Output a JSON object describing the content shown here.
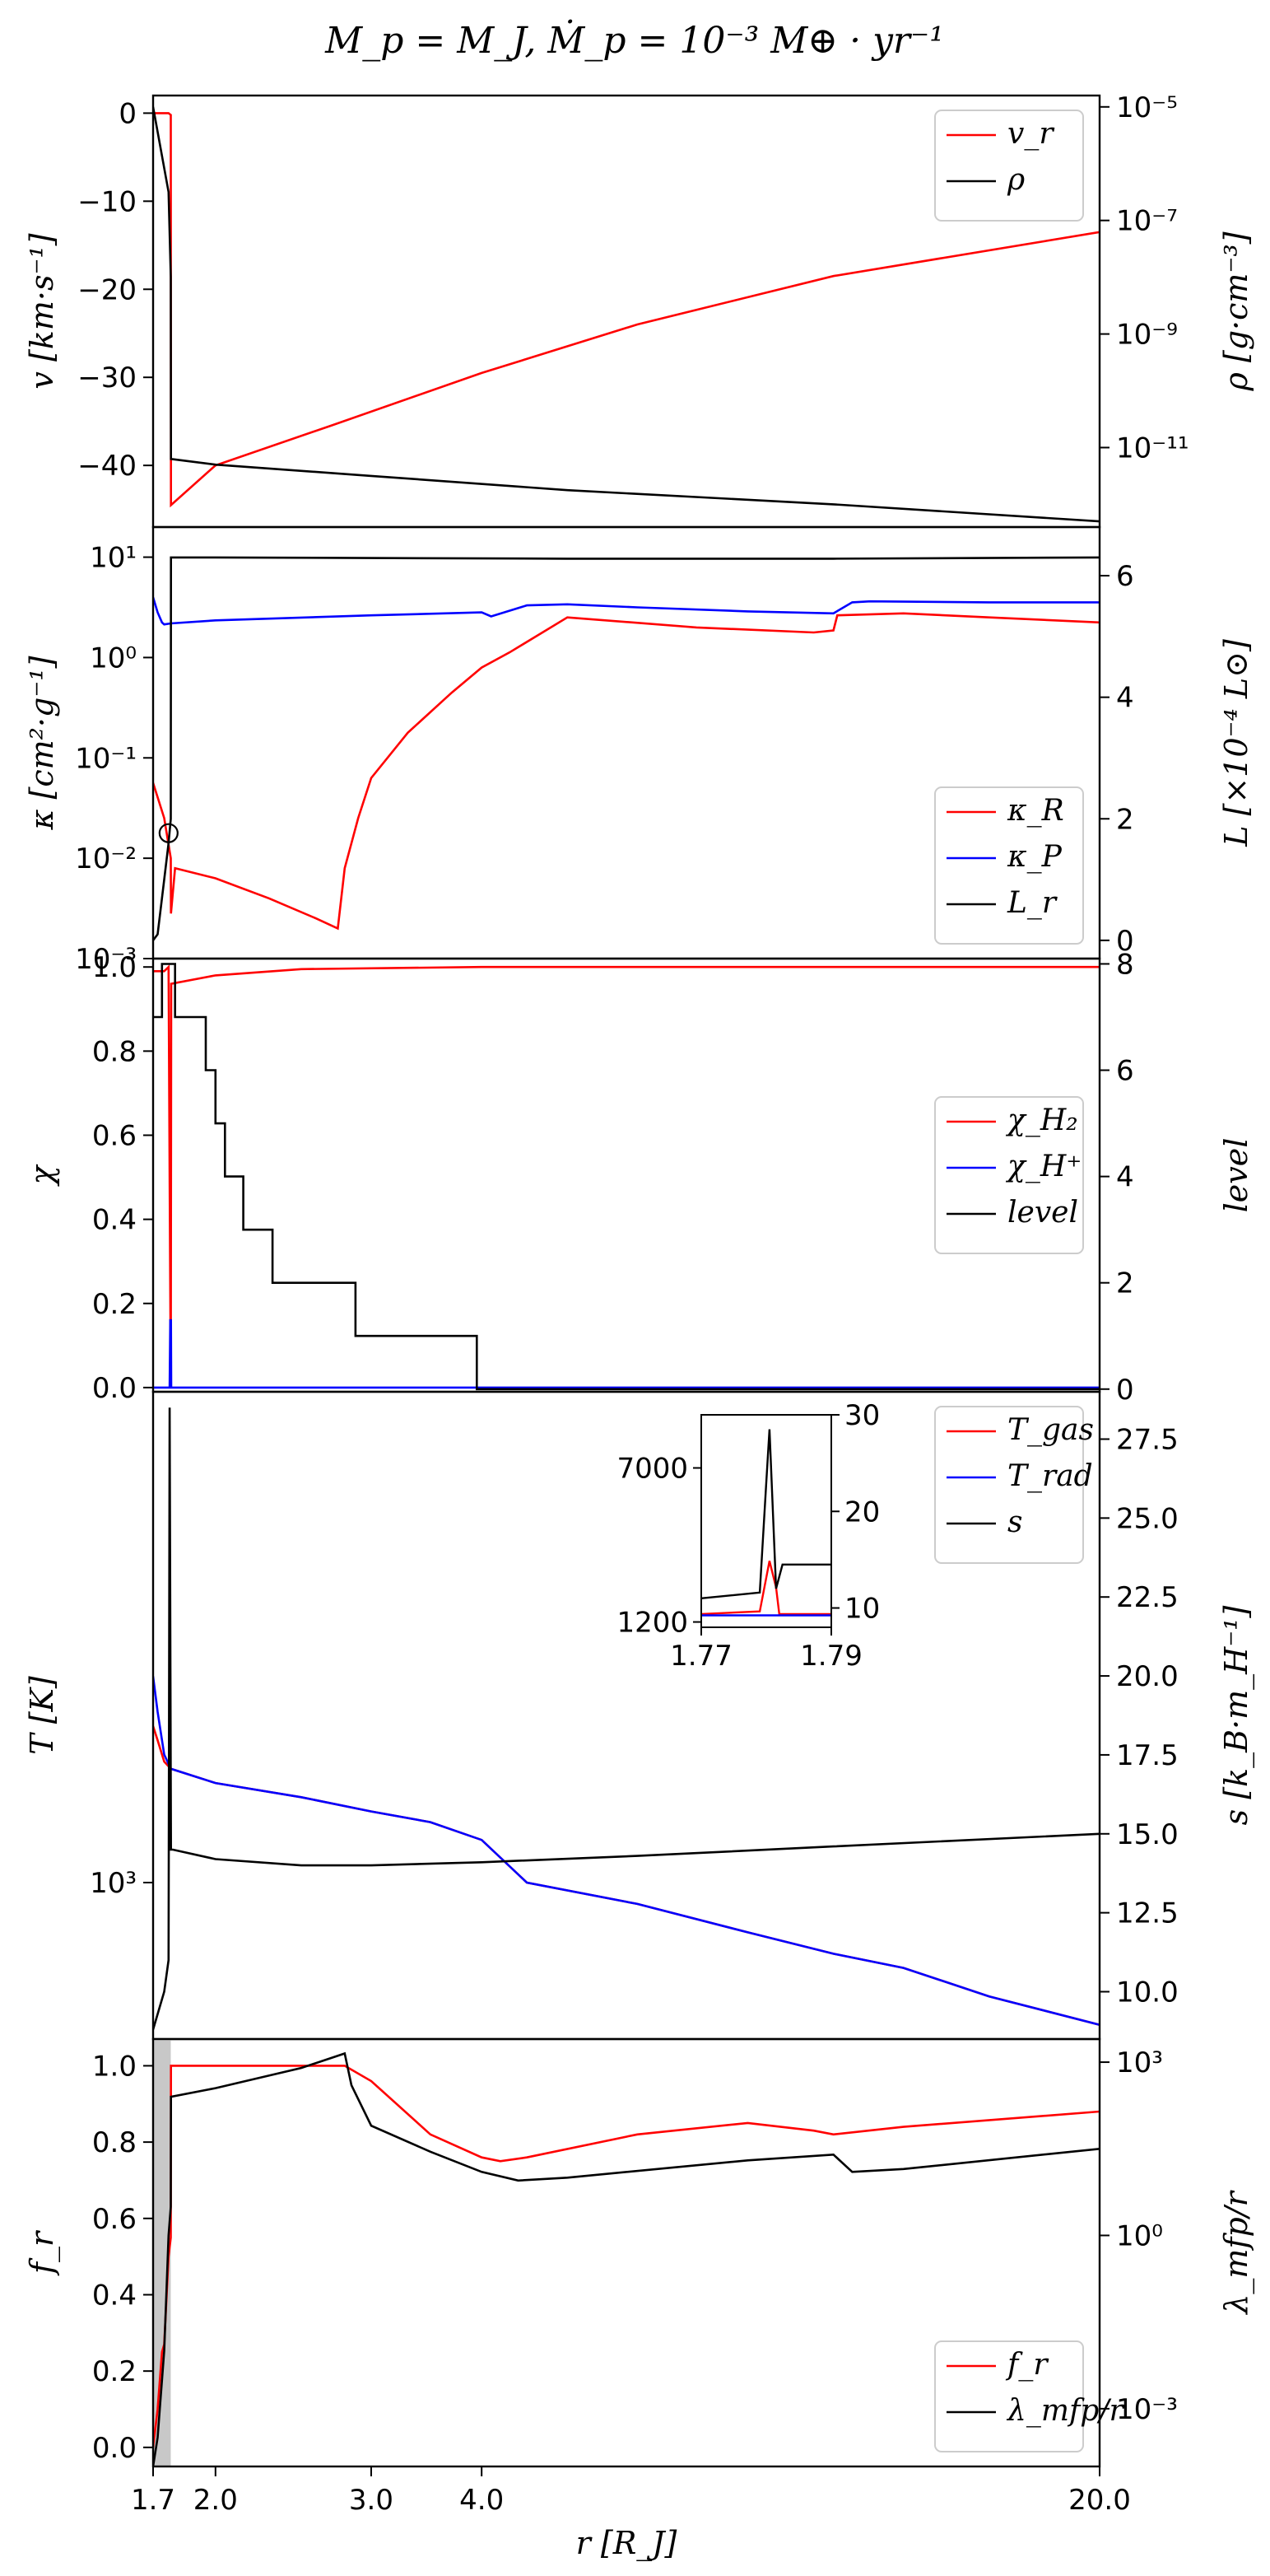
{
  "figure_title": "M_p = M_J, Ṁ_p = 10⁻³ M⊕ · yr⁻¹",
  "colors": {
    "red": "#ff0000",
    "blue": "#0000ff",
    "black": "#000000",
    "shade": "#c8c8c8"
  },
  "chart_data": [
    {
      "type": "line",
      "panel": "velocity-density",
      "xscale": "log",
      "xlim": [
        1.7,
        20.0
      ],
      "ylabel": "v [km·s⁻¹]",
      "ylim": [
        -47,
        2
      ],
      "y_ticks": [
        "0",
        "−10",
        "−20",
        "−30",
        "−40"
      ],
      "y2label": "ρ [g·cm⁻³]",
      "y2scale": "log",
      "y2lim_log10": [
        -12.4,
        -4.8
      ],
      "y2_ticks": [
        "10⁻⁵",
        "10⁻⁷",
        "10⁻⁹",
        "10⁻¹¹"
      ],
      "legend": {
        "position": "top-right",
        "entries": [
          "v_r",
          "ρ"
        ]
      },
      "series": [
        {
          "name": "v_r",
          "axis": "left",
          "color": "red",
          "x": [
            1.7,
            1.77,
            1.775,
            1.78,
            1.781,
            2.0,
            2.7,
            4.0,
            6.0,
            10.0,
            20.0
          ],
          "y": [
            0,
            0,
            -0.1,
            -0.2,
            -44.5,
            -40,
            -35.5,
            -29.5,
            -24,
            -18.5,
            -13.5
          ]
        },
        {
          "name": "ρ",
          "axis": "right",
          "color": "black",
          "x": [
            1.7,
            1.77,
            1.78,
            1.781,
            2.0,
            3.0,
            5.0,
            10.0,
            20.0
          ],
          "y_log10": [
            -5,
            -6.5,
            -8,
            -11.2,
            -11.3,
            -11.5,
            -11.75,
            -12.0,
            -12.3
          ]
        }
      ]
    },
    {
      "type": "line",
      "panel": "opacity-luminosity",
      "xscale": "log",
      "xlim": [
        1.7,
        20.0
      ],
      "ylabel": "κ [cm²·g⁻¹]",
      "yscale": "log",
      "ylim_log10": [
        -3,
        1.3
      ],
      "y_ticks": [
        "10¹",
        "10⁰",
        "10⁻¹",
        "10⁻²",
        "10⁻³"
      ],
      "y2label": "L [×10⁻⁴ L⊙]",
      "y2lim": [
        -0.3,
        6.8
      ],
      "y2_ticks": [
        "0",
        "2",
        "4",
        "6"
      ],
      "legend": {
        "position": "lower-right",
        "entries": [
          "κ_R",
          "κ_P",
          "L_r"
        ]
      },
      "series": [
        {
          "name": "κ_R",
          "axis": "left",
          "color": "red",
          "x": [
            1.7,
            1.75,
            1.78,
            1.781,
            1.8,
            2.0,
            2.3,
            2.6,
            2.75,
            2.8,
            2.9,
            3.0,
            3.3,
            3.7,
            4.0,
            4.3,
            5.0,
            7.0,
            9.5,
            10.0,
            10.1,
            12.0,
            15.0,
            20.0
          ],
          "y_log10": [
            -1.25,
            -1.6,
            -2.0,
            -2.55,
            -2.1,
            -2.2,
            -2.4,
            -2.6,
            -2.7,
            -2.1,
            -1.6,
            -1.2,
            -0.75,
            -0.35,
            -0.1,
            0.05,
            0.4,
            0.3,
            0.25,
            0.27,
            0.42,
            0.44,
            0.4,
            0.35
          ]
        },
        {
          "name": "κ_P",
          "axis": "left",
          "color": "blue",
          "x": [
            1.7,
            1.72,
            1.74,
            1.75,
            1.78,
            2.0,
            3.0,
            4.0,
            4.1,
            4.5,
            5.0,
            6.0,
            8.0,
            10.0,
            10.5,
            11.0,
            15.0,
            20.0
          ],
          "y_log10": [
            0.6,
            0.45,
            0.35,
            0.33,
            0.34,
            0.37,
            0.42,
            0.45,
            0.41,
            0.52,
            0.53,
            0.5,
            0.46,
            0.44,
            0.55,
            0.56,
            0.55,
            0.55
          ]
        },
        {
          "name": "L_r",
          "axis": "right",
          "color": "black",
          "x": [
            1.7,
            1.72,
            1.75,
            1.77,
            1.78,
            1.781,
            2.0,
            5.0,
            10.0,
            20.0
          ],
          "y": [
            0,
            0.1,
            1.0,
            1.6,
            2.0,
            6.3,
            6.3,
            6.28,
            6.28,
            6.3
          ]
        }
      ],
      "annotation": {
        "type": "circle-marker",
        "x": 1.77,
        "y_log10": -1.75
      }
    },
    {
      "type": "line",
      "panel": "dissociation-level",
      "xscale": "log",
      "xlim": [
        1.7,
        20.0
      ],
      "ylabel": "χ",
      "ylim": [
        -0.01,
        1.02
      ],
      "y_ticks": [
        "1.0",
        "0.8",
        "0.6",
        "0.4",
        "0.2",
        "0.0"
      ],
      "y2label": "level",
      "y2lim": [
        -0.05,
        8.1
      ],
      "y2_ticks": [
        "8",
        "6",
        "4",
        "2",
        "0"
      ],
      "legend": {
        "position": "center-right",
        "entries": [
          "χ_H₂",
          "χ_H⁺",
          "level"
        ]
      },
      "series": [
        {
          "name": "χ_H₂",
          "axis": "left",
          "color": "red",
          "x": [
            1.7,
            1.75,
            1.77,
            1.775,
            1.78,
            1.782,
            2.0,
            2.5,
            4.0,
            20.0
          ],
          "y": [
            0.99,
            0.99,
            1.0,
            0.5,
            0.0,
            0.96,
            0.98,
            0.995,
            1.0,
            1.0
          ]
        },
        {
          "name": "χ_H⁺",
          "axis": "left",
          "color": "blue",
          "x": [
            1.7,
            1.775,
            1.778,
            1.781,
            1.782,
            20.0
          ],
          "y": [
            0.0,
            0.0,
            0.16,
            0.16,
            0.0,
            0.0
          ]
        },
        {
          "name": "level",
          "axis": "right",
          "color": "black",
          "x": [
            1.7,
            1.74,
            1.74,
            1.8,
            1.8,
            1.95,
            1.95,
            2.0,
            2.0,
            2.05,
            2.05,
            2.15,
            2.15,
            2.32,
            2.32,
            2.88,
            2.88,
            3.95,
            3.95,
            20.0
          ],
          "y": [
            7,
            7,
            8,
            8,
            7,
            7,
            6,
            6,
            5,
            5,
            4,
            4,
            3,
            3,
            2,
            2,
            1,
            1,
            0,
            0
          ]
        }
      ]
    },
    {
      "type": "line",
      "panel": "temperature-entropy",
      "xscale": "log",
      "xlim": [
        1.7,
        20.0
      ],
      "ylabel": "T [K]",
      "yscale": "log",
      "ylim_log10": [
        2.78,
        3.69
      ],
      "y_ticks": [
        "10³"
      ],
      "y2label": "s [k_B·m_H⁻¹]",
      "y2lim": [
        8.5,
        29.0
      ],
      "y2_ticks": [
        "27.5",
        "25.0",
        "22.5",
        "20.0",
        "17.5",
        "15.0",
        "12.5",
        "10.0"
      ],
      "legend": {
        "position": "top-right",
        "entries": [
          "T_gas",
          "T_rad",
          "s"
        ]
      },
      "series": [
        {
          "name": "T_gas",
          "axis": "left",
          "color": "red",
          "x": [
            1.7,
            1.72,
            1.75,
            1.78,
            2.0,
            2.5,
            3.0,
            3.5,
            4.0,
            4.5,
            6.0,
            8.0,
            10.0,
            12.0,
            15.0,
            20.0
          ],
          "y_log10": [
            3.22,
            3.2,
            3.17,
            3.16,
            3.14,
            3.12,
            3.1,
            3.085,
            3.06,
            3.0,
            2.97,
            2.93,
            2.9,
            2.88,
            2.84,
            2.8
          ]
        },
        {
          "name": "T_rad",
          "axis": "left",
          "color": "blue",
          "x": [
            1.7,
            1.72,
            1.75,
            1.78,
            2.0,
            2.5,
            3.0,
            3.5,
            4.0,
            4.5,
            6.0,
            8.0,
            10.0,
            12.0,
            15.0,
            20.0
          ],
          "y_log10": [
            3.29,
            3.24,
            3.18,
            3.16,
            3.14,
            3.12,
            3.1,
            3.085,
            3.06,
            3.0,
            2.97,
            2.93,
            2.9,
            2.88,
            2.84,
            2.8
          ]
        },
        {
          "name": "s",
          "axis": "right",
          "color": "black",
          "x": [
            1.7,
            1.75,
            1.77,
            1.775,
            1.781,
            1.79,
            2.0,
            2.5,
            3.0,
            4.0,
            6.0,
            10.0,
            20.0
          ],
          "y": [
            8.8,
            10.0,
            11.0,
            28.5,
            14.5,
            14.5,
            14.2,
            14.0,
            14.0,
            14.1,
            14.3,
            14.6,
            15.0
          ]
        }
      ],
      "inset": {
        "xlim": [
          1.77,
          1.79
        ],
        "x_ticks": [
          "1.77",
          "1.79"
        ],
        "y_ticks": [
          "7000",
          "1200"
        ],
        "y2_ticks": [
          "30",
          "20",
          "10"
        ],
        "y_range": [
          1000,
          9000
        ],
        "y2_range": [
          8,
          30
        ],
        "series": [
          {
            "name": "T_gas",
            "axis": "left",
            "color": "red",
            "x": [
              1.77,
              1.779,
              1.7805,
              1.7815,
              1.782,
              1.79
            ],
            "y": [
              1500,
              1600,
              3500,
              2500,
              1500,
              1500
            ]
          },
          {
            "name": "T_rad",
            "axis": "left",
            "color": "blue",
            "x": [
              1.77,
              1.79
            ],
            "y": [
              1450,
              1450
            ]
          },
          {
            "name": "s",
            "axis": "right",
            "color": "black",
            "x": [
              1.77,
              1.779,
              1.78,
              1.7805,
              1.7815,
              1.7825,
              1.79
            ],
            "y": [
              11.0,
              11.6,
              23.0,
              28.5,
              12.0,
              14.5,
              14.5
            ]
          }
        ]
      }
    },
    {
      "type": "line",
      "panel": "flux-limiter-mfp",
      "xscale": "log",
      "xlim": [
        1.7,
        20.0
      ],
      "x_ticks": [
        "1.7",
        "2.0",
        "3.0",
        "4.0",
        "20.0"
      ],
      "xlabel": "r [R_J]",
      "ylabel": "f_r",
      "ylim": [
        -0.05,
        1.07
      ],
      "y_ticks": [
        "1.0",
        "0.8",
        "0.6",
        "0.4",
        "0.2",
        "0.0"
      ],
      "y2label": "λ_mfp/r",
      "y2scale": "log",
      "y2lim_log10": [
        -4.0,
        3.4
      ],
      "y2_ticks": [
        "10³",
        "10⁰",
        "10⁻³"
      ],
      "shaded_region": [
        1.7,
        1.78
      ],
      "legend": {
        "position": "lower-right",
        "entries": [
          "f_r",
          "λ_mfp/r"
        ]
      },
      "series": [
        {
          "name": "f_r",
          "axis": "left",
          "color": "red",
          "x": [
            1.7,
            1.72,
            1.74,
            1.75,
            1.77,
            1.78,
            1.781,
            2.0,
            2.5,
            2.8,
            3.0,
            3.5,
            4.0,
            4.2,
            4.5,
            6.0,
            8.0,
            9.5,
            10.0,
            12.0,
            20.0
          ],
          "y": [
            0.0,
            0.1,
            0.25,
            0.27,
            0.5,
            0.55,
            1.0,
            1.0,
            1.0,
            1.0,
            0.96,
            0.82,
            0.76,
            0.75,
            0.76,
            0.82,
            0.85,
            0.83,
            0.82,
            0.84,
            0.88
          ]
        },
        {
          "name": "λ_mfp/r",
          "axis": "right",
          "color": "black",
          "x": [
            1.7,
            1.72,
            1.75,
            1.77,
            1.78,
            1.781,
            2.0,
            2.5,
            2.8,
            2.85,
            3.0,
            3.5,
            4.0,
            4.4,
            5.0,
            8.0,
            10.0,
            10.5,
            12.0,
            20.0
          ],
          "y_log10": [
            -4.0,
            -3.5,
            -2.0,
            0.0,
            0.5,
            2.4,
            2.55,
            2.9,
            3.15,
            2.6,
            1.9,
            1.45,
            1.1,
            0.95,
            1.0,
            1.3,
            1.4,
            1.1,
            1.15,
            1.5
          ]
        }
      ]
    }
  ]
}
